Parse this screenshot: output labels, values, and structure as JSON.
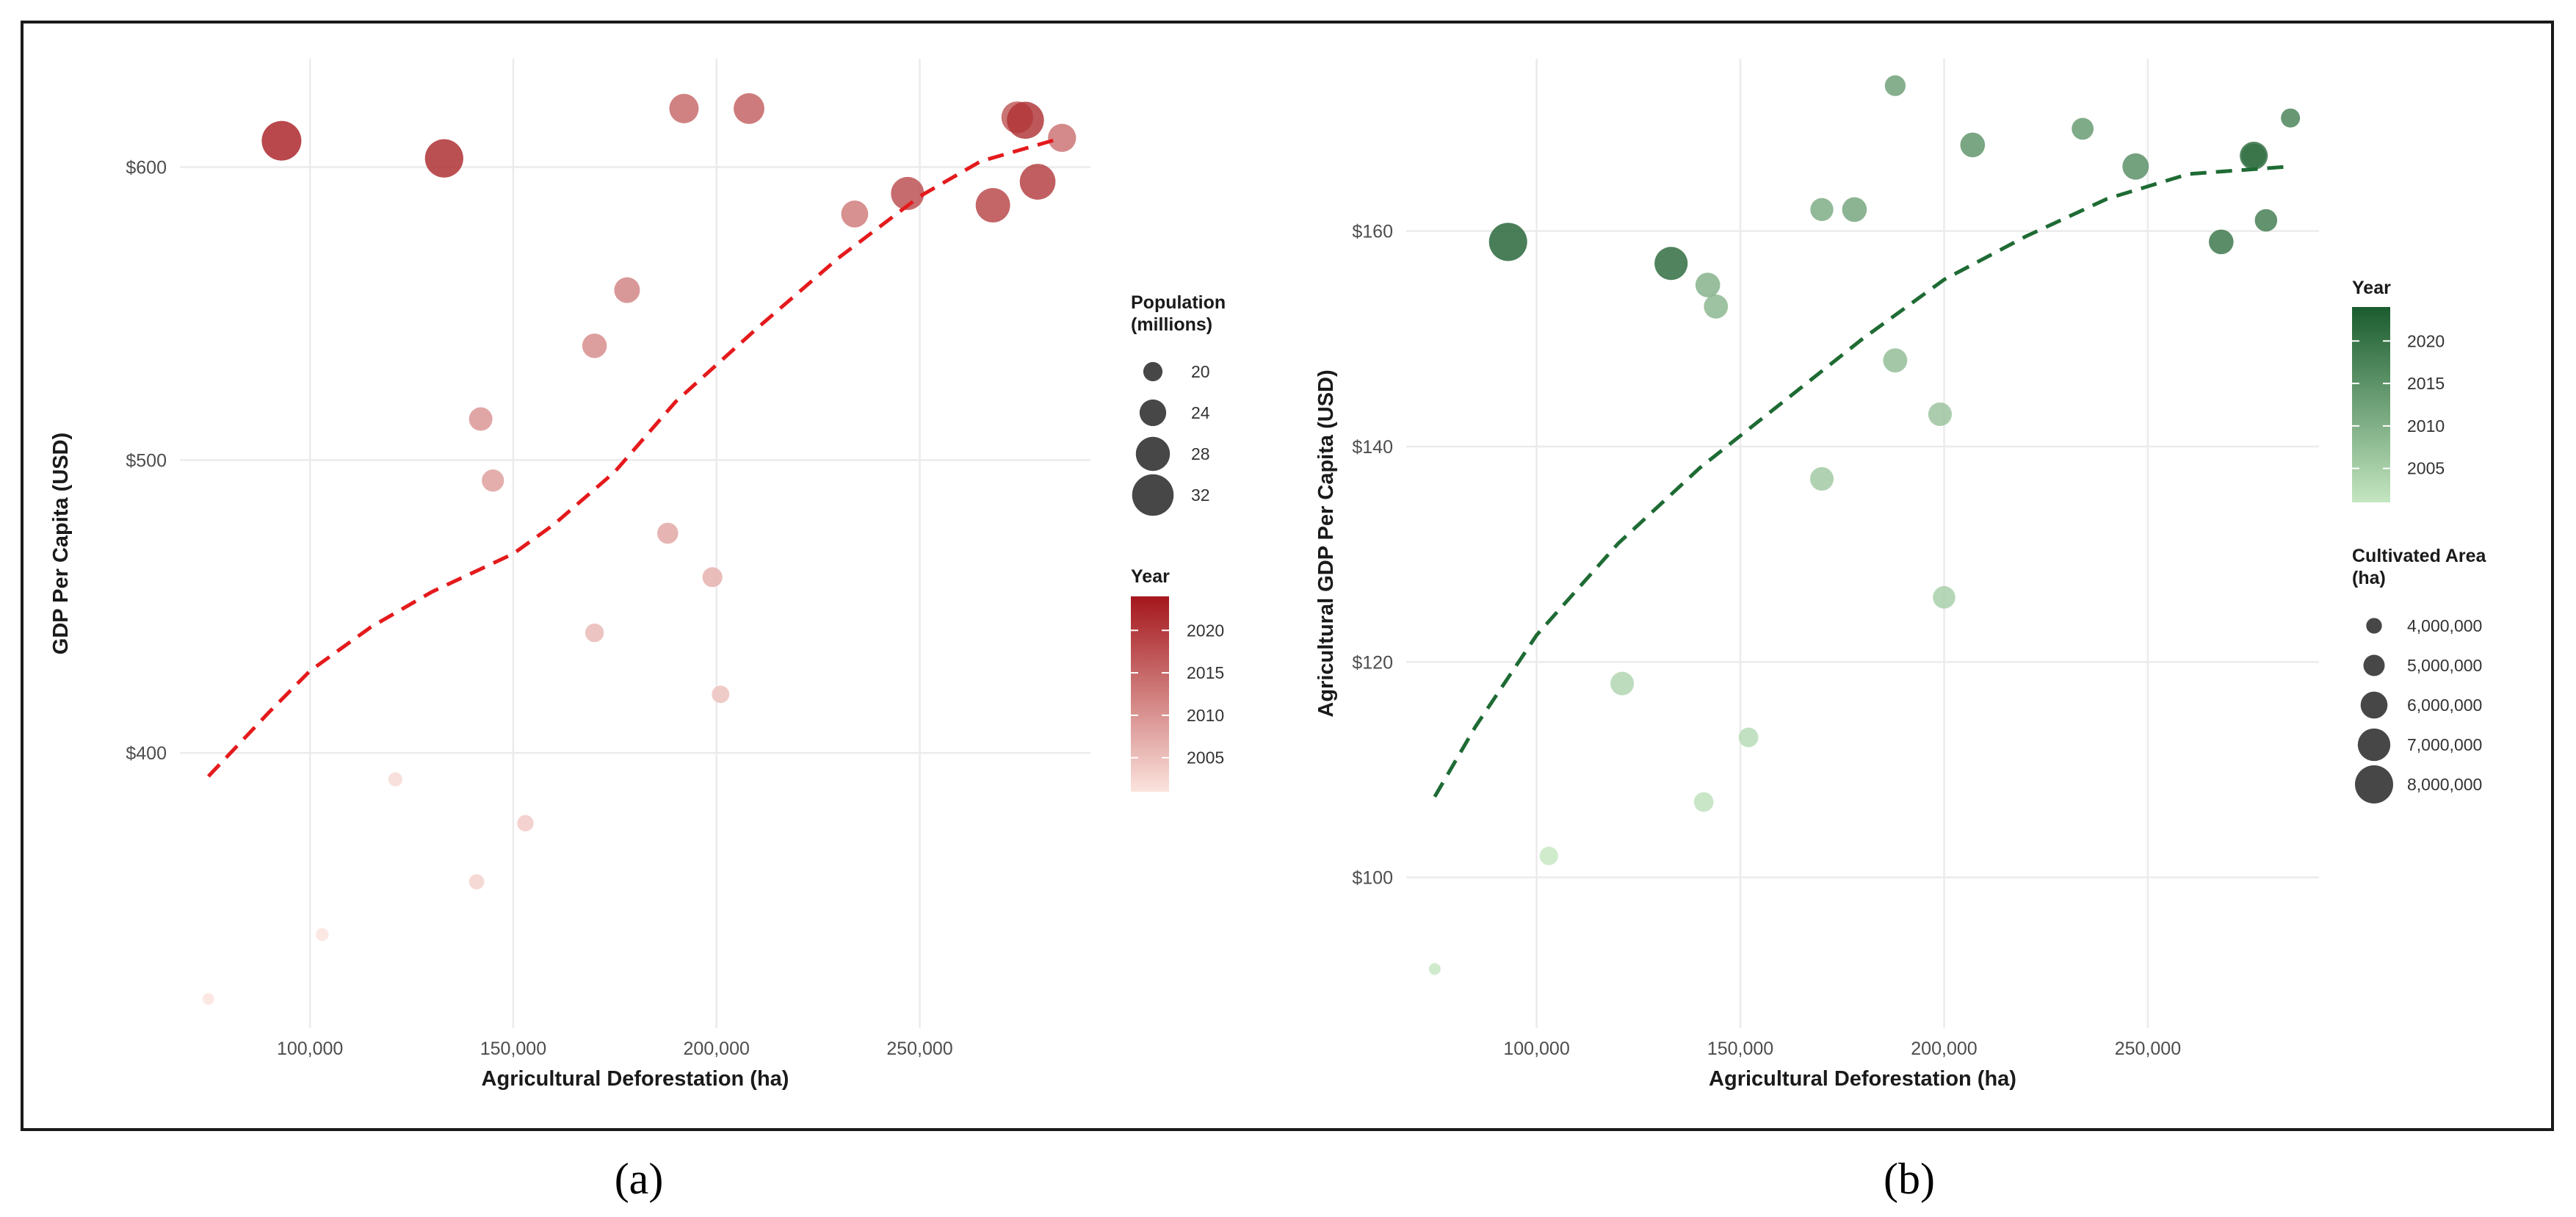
{
  "figure": {
    "panel_labels": [
      "(a)",
      "(b)"
    ]
  },
  "chart_data": [
    {
      "type": "scatter",
      "panel": "(a)",
      "title": "",
      "xlabel": "Agricultural Deforestation (ha)",
      "ylabel": "GDP Per Capita (USD)",
      "xlim": [
        68000,
        292000
      ],
      "ylim": [
        306,
        637
      ],
      "xticks": [
        100000,
        150000,
        200000,
        250000
      ],
      "xtick_labels": [
        "100,000",
        "150,000",
        "200,000",
        "250,000"
      ],
      "yticks": [
        400,
        500,
        600
      ],
      "ytick_labels": [
        "$400",
        "$500",
        "$600"
      ],
      "color_low": "#fbe3dd",
      "color_high": "#a4171c",
      "trend_color": "#e41a1c",
      "points": [
        {
          "x": 75000,
          "y": 316,
          "year": 2000,
          "size": 16.0
        },
        {
          "x": 103000,
          "y": 338,
          "year": 2001,
          "size": 16.6
        },
        {
          "x": 121000,
          "y": 391,
          "year": 2002,
          "size": 17.3
        },
        {
          "x": 141000,
          "y": 356,
          "year": 2003,
          "size": 17.9
        },
        {
          "x": 153000,
          "y": 376,
          "year": 2004,
          "size": 18.5
        },
        {
          "x": 201000,
          "y": 420,
          "year": 2005,
          "size": 19.1
        },
        {
          "x": 170000,
          "y": 441,
          "year": 2006,
          "size": 19.7
        },
        {
          "x": 199000,
          "y": 460,
          "year": 2007,
          "size": 20.4
        },
        {
          "x": 188000,
          "y": 475,
          "year": 2008,
          "size": 21.0
        },
        {
          "x": 145000,
          "y": 493,
          "year": 2009,
          "size": 21.6
        },
        {
          "x": 142000,
          "y": 514,
          "year": 2010,
          "size": 22.3
        },
        {
          "x": 170000,
          "y": 539,
          "year": 2011,
          "size": 22.9
        },
        {
          "x": 178000,
          "y": 558,
          "year": 2012,
          "size": 23.5
        },
        {
          "x": 234000,
          "y": 584,
          "year": 2013,
          "size": 24.2
        },
        {
          "x": 285000,
          "y": 610,
          "year": 2014,
          "size": 24.8
        },
        {
          "x": 192000,
          "y": 620,
          "year": 2015,
          "size": 25.5
        },
        {
          "x": 208000,
          "y": 620,
          "year": 2016,
          "size": 26.2
        },
        {
          "x": 274000,
          "y": 617,
          "year": 2017,
          "size": 26.8
        },
        {
          "x": 247000,
          "y": 591,
          "year": 2018,
          "size": 27.5
        },
        {
          "x": 268000,
          "y": 587,
          "year": 2019,
          "size": 28.2
        },
        {
          "x": 279000,
          "y": 595,
          "year": 2020,
          "size": 28.9
        },
        {
          "x": 276000,
          "y": 616,
          "year": 2021,
          "size": 29.6
        },
        {
          "x": 133000,
          "y": 603,
          "year": 2022,
          "size": 30.3
        },
        {
          "x": 93000,
          "y": 609,
          "year": 2023,
          "size": 31.0
        }
      ],
      "trend": [
        {
          "x": 75000,
          "y": 392
        },
        {
          "x": 90000,
          "y": 414
        },
        {
          "x": 100000,
          "y": 428
        },
        {
          "x": 115000,
          "y": 443
        },
        {
          "x": 130000,
          "y": 455
        },
        {
          "x": 150000,
          "y": 468
        },
        {
          "x": 160000,
          "y": 478
        },
        {
          "x": 175000,
          "y": 496
        },
        {
          "x": 190000,
          "y": 520
        },
        {
          "x": 210000,
          "y": 545
        },
        {
          "x": 230000,
          "y": 569
        },
        {
          "x": 250000,
          "y": 590
        },
        {
          "x": 265000,
          "y": 602
        },
        {
          "x": 285000,
          "y": 610
        }
      ],
      "legend_size": {
        "title_lines": [
          "Population",
          "(millions)"
        ],
        "entries": [
          {
            "label": "20",
            "value": 20
          },
          {
            "label": "24",
            "value": 24
          },
          {
            "label": "28",
            "value": 28
          },
          {
            "label": "32",
            "value": 32
          }
        ]
      },
      "legend_color": {
        "title": "Year",
        "range": [
          2001,
          2024
        ],
        "ticks": [
          2005,
          2010,
          2015,
          2020
        ],
        "tick_labels": [
          "2005",
          "2010",
          "2015",
          "2020"
        ]
      }
    },
    {
      "type": "scatter",
      "panel": "(b)",
      "title": "",
      "xlabel": "Agricultural Deforestation (ha)",
      "ylabel": "Agricultural GDP Per Capita (USD)",
      "xlim": [
        68000,
        292000
      ],
      "ylim": [
        86,
        176
      ],
      "xticks": [
        100000,
        150000,
        200000,
        250000
      ],
      "xtick_labels": [
        "100,000",
        "150,000",
        "200,000",
        "250,000"
      ],
      "yticks": [
        100,
        120,
        140,
        160
      ],
      "ytick_labels": [
        "$100",
        "$120",
        "$140",
        "$160"
      ],
      "color_low": "#c4e6c1",
      "color_high": "#1a5c2e",
      "trend_color": "#1e6b34",
      "points": [
        {
          "x": 75000,
          "y": 91.5,
          "year": 2000,
          "area": 3300000
        },
        {
          "x": 103000,
          "y": 102,
          "year": 2001,
          "area": 4500000
        },
        {
          "x": 141000,
          "y": 107,
          "year": 2002,
          "area": 4700000
        },
        {
          "x": 152000,
          "y": 113,
          "year": 2003,
          "area": 4700000
        },
        {
          "x": 121000,
          "y": 118,
          "year": 2004,
          "area": 5400000
        },
        {
          "x": 200000,
          "y": 126,
          "year": 2005,
          "area": 5200000
        },
        {
          "x": 170000,
          "y": 137,
          "year": 2006,
          "area": 5400000
        },
        {
          "x": 199000,
          "y": 143,
          "year": 2007,
          "area": 5400000
        },
        {
          "x": 188000,
          "y": 148,
          "year": 2008,
          "area": 5500000
        },
        {
          "x": 144000,
          "y": 153,
          "year": 2009,
          "area": 5500000
        },
        {
          "x": 142000,
          "y": 155,
          "year": 2010,
          "area": 5600000
        },
        {
          "x": 170000,
          "y": 162,
          "year": 2011,
          "area": 5300000
        },
        {
          "x": 178000,
          "y": 162,
          "year": 2012,
          "area": 5600000
        },
        {
          "x": 188000,
          "y": 173.5,
          "year": 2013,
          "area": 4900000
        },
        {
          "x": 234000,
          "y": 169.5,
          "year": 2014,
          "area": 5100000
        },
        {
          "x": 207000,
          "y": 168,
          "year": 2015,
          "area": 5600000
        },
        {
          "x": 247000,
          "y": 166,
          "year": 2016,
          "area": 5900000
        },
        {
          "x": 276000,
          "y": 167,
          "year": 2017,
          "area": 5600000
        },
        {
          "x": 285000,
          "y": 170.5,
          "year": 2018,
          "area": 4600000
        },
        {
          "x": 279000,
          "y": 161,
          "year": 2019,
          "area": 5200000
        },
        {
          "x": 268000,
          "y": 159,
          "year": 2020,
          "area": 5600000
        },
        {
          "x": 276000,
          "y": 167,
          "year": 2021,
          "area": 6200000
        },
        {
          "x": 133000,
          "y": 157,
          "year": 2022,
          "area": 7100000
        },
        {
          "x": 93000,
          "y": 159,
          "year": 2023,
          "area": 8000000
        }
      ],
      "trend": [
        {
          "x": 75000,
          "y": 107.5
        },
        {
          "x": 85000,
          "y": 114
        },
        {
          "x": 100000,
          "y": 122.5
        },
        {
          "x": 120000,
          "y": 131
        },
        {
          "x": 140000,
          "y": 138
        },
        {
          "x": 160000,
          "y": 144
        },
        {
          "x": 180000,
          "y": 150
        },
        {
          "x": 200000,
          "y": 155.5
        },
        {
          "x": 220000,
          "y": 159.5
        },
        {
          "x": 240000,
          "y": 163
        },
        {
          "x": 260000,
          "y": 165.3
        },
        {
          "x": 285000,
          "y": 166
        }
      ],
      "legend_color": {
        "title": "Year",
        "range": [
          2001,
          2024
        ],
        "ticks": [
          2005,
          2010,
          2015,
          2020
        ],
        "tick_labels": [
          "2005",
          "2010",
          "2015",
          "2020"
        ]
      },
      "legend_size": {
        "title_lines": [
          "Cultivated Area",
          "(ha)"
        ],
        "entries": [
          {
            "label": "4,000,000",
            "value": 4000000
          },
          {
            "label": "5,000,000",
            "value": 5000000
          },
          {
            "label": "6,000,000",
            "value": 6000000
          },
          {
            "label": "7,000,000",
            "value": 7000000
          },
          {
            "label": "8,000,000",
            "value": 8000000
          }
        ]
      }
    }
  ]
}
